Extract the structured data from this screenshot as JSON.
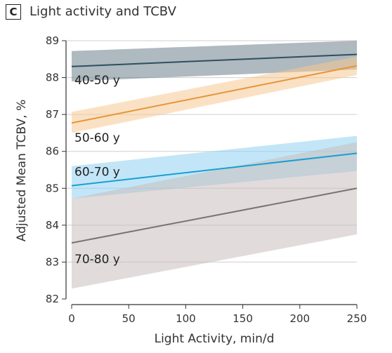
{
  "panel": {
    "letter": "C",
    "title": "Light activity and TCBV"
  },
  "chart_data": {
    "type": "line",
    "title": "Light activity and TCBV",
    "xlabel": "Light Activity, min/d",
    "ylabel": "Adjusted Mean TCBV, %",
    "xlim": [
      0,
      250
    ],
    "ylim": [
      82,
      89
    ],
    "xticks": [
      "0",
      "50",
      "100",
      "150",
      "200",
      "250"
    ],
    "yticks": [
      "82",
      "83",
      "84",
      "85",
      "86",
      "87",
      "88",
      "89"
    ],
    "grid": true,
    "series": [
      {
        "name": "40-50 y",
        "color": "#2f4f5e",
        "band_color": "#6c7f8d",
        "x": [
          0,
          250
        ],
        "y": [
          88.3,
          88.63
        ],
        "lower": [
          87.9,
          88.22
        ],
        "upper": [
          88.72,
          89.0
        ]
      },
      {
        "name": "50-60 y",
        "color": "#e5953a",
        "band_color": "#f7c892",
        "x": [
          0,
          250
        ],
        "y": [
          86.77,
          88.32
        ],
        "lower": [
          86.5,
          88.07
        ],
        "upper": [
          87.07,
          88.57
        ]
      },
      {
        "name": "60-70 y",
        "color": "#1a9fd2",
        "band_color": "#8fd2f0",
        "x": [
          0,
          250
        ],
        "y": [
          85.07,
          85.95
        ],
        "lower": [
          84.72,
          85.47
        ],
        "upper": [
          85.6,
          86.42
        ]
      },
      {
        "name": "70-80 y",
        "color": "#7b7373",
        "band_color": "#c9bebe",
        "x": [
          0,
          250
        ],
        "y": [
          83.52,
          85.0
        ],
        "lower": [
          82.28,
          83.75
        ],
        "upper": [
          84.72,
          86.25
        ]
      }
    ]
  }
}
